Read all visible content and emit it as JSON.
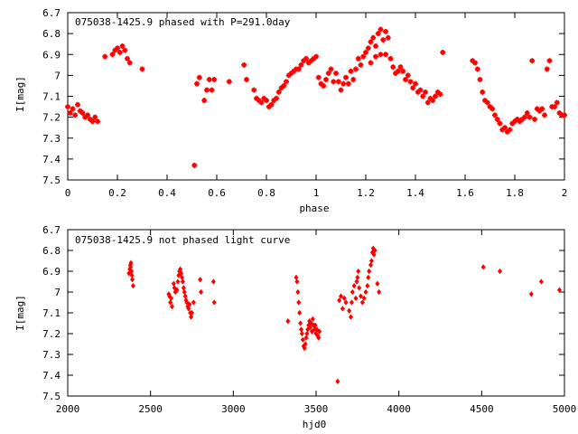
{
  "chart_data": [
    {
      "type": "scatter",
      "title": "075038-1425.9 phased with P=291.0day",
      "xlabel": "phase",
      "ylabel": "I[mag]",
      "xlim": [
        0,
        2
      ],
      "ylim": [
        7.5,
        6.7
      ],
      "y_reversed": true,
      "grid": false,
      "marker": "cross",
      "color": "#ff0000",
      "x_ticks": [
        "0",
        "0.2",
        "0.4",
        "0.6",
        "0.8",
        "1",
        "1.2",
        "1.4",
        "1.6",
        "1.8",
        "2"
      ],
      "y_ticks": [
        "6.7",
        "6.8",
        "6.9",
        "7",
        "7.1",
        "7.2",
        "7.3",
        "7.4",
        "7.5"
      ],
      "x_tick_values": [
        0,
        0.2,
        0.4,
        0.6,
        0.8,
        1.0,
        1.2,
        1.4,
        1.6,
        1.8,
        2.0
      ],
      "y_tick_values": [
        6.7,
        6.8,
        6.9,
        7.0,
        7.1,
        7.2,
        7.3,
        7.4,
        7.5
      ],
      "points": [
        [
          0.0,
          7.15
        ],
        [
          0.01,
          7.18
        ],
        [
          0.02,
          7.16
        ],
        [
          0.03,
          7.19
        ],
        [
          0.04,
          7.14
        ],
        [
          0.05,
          7.17
        ],
        [
          0.06,
          7.18
        ],
        [
          0.07,
          7.2
        ],
        [
          0.08,
          7.19
        ],
        [
          0.09,
          7.21
        ],
        [
          0.1,
          7.22
        ],
        [
          0.11,
          7.2
        ],
        [
          0.12,
          7.22
        ],
        [
          0.15,
          6.91
        ],
        [
          0.18,
          6.9
        ],
        [
          0.19,
          6.88
        ],
        [
          0.2,
          6.87
        ],
        [
          0.21,
          6.89
        ],
        [
          0.22,
          6.86
        ],
        [
          0.23,
          6.88
        ],
        [
          0.24,
          6.92
        ],
        [
          0.25,
          6.94
        ],
        [
          0.3,
          6.97
        ],
        [
          0.51,
          7.43
        ],
        [
          0.52,
          7.04
        ],
        [
          0.53,
          7.01
        ],
        [
          0.55,
          7.12
        ],
        [
          0.56,
          7.07
        ],
        [
          0.57,
          7.02
        ],
        [
          0.58,
          7.07
        ],
        [
          0.59,
          7.02
        ],
        [
          0.65,
          7.03
        ],
        [
          0.71,
          6.95
        ],
        [
          0.72,
          7.02
        ],
        [
          0.75,
          7.07
        ],
        [
          0.76,
          7.11
        ],
        [
          0.77,
          7.12
        ],
        [
          0.78,
          7.13
        ],
        [
          0.79,
          7.11
        ],
        [
          0.8,
          7.12
        ],
        [
          0.81,
          7.15
        ],
        [
          0.82,
          7.14
        ],
        [
          0.83,
          7.12
        ],
        [
          0.84,
          7.11
        ],
        [
          0.85,
          7.08
        ],
        [
          0.86,
          7.06
        ],
        [
          0.87,
          7.05
        ],
        [
          0.88,
          7.03
        ],
        [
          0.89,
          7.0
        ],
        [
          0.9,
          6.99
        ],
        [
          0.91,
          6.98
        ],
        [
          0.92,
          6.97
        ],
        [
          0.93,
          6.97
        ],
        [
          0.94,
          6.95
        ],
        [
          0.95,
          6.93
        ],
        [
          0.96,
          6.92
        ],
        [
          0.97,
          6.94
        ],
        [
          0.98,
          6.93
        ],
        [
          0.99,
          6.92
        ],
        [
          1.0,
          6.91
        ],
        [
          1.01,
          7.01
        ],
        [
          1.02,
          7.04
        ],
        [
          1.03,
          7.05
        ],
        [
          1.04,
          7.02
        ],
        [
          1.05,
          6.99
        ],
        [
          1.06,
          6.97
        ],
        [
          1.07,
          7.03
        ],
        [
          1.08,
          6.99
        ],
        [
          1.09,
          7.03
        ],
        [
          1.1,
          7.07
        ],
        [
          1.11,
          7.04
        ],
        [
          1.12,
          7.01
        ],
        [
          1.13,
          7.04
        ],
        [
          1.14,
          6.98
        ],
        [
          1.15,
          7.02
        ],
        [
          1.16,
          6.97
        ],
        [
          1.17,
          6.92
        ],
        [
          1.18,
          6.95
        ],
        [
          1.19,
          6.91
        ],
        [
          1.2,
          6.89
        ],
        [
          1.21,
          6.87
        ],
        [
          1.22,
          6.84
        ],
        [
          1.23,
          6.82
        ],
        [
          1.24,
          6.86
        ],
        [
          1.25,
          6.8
        ],
        [
          1.26,
          6.78
        ],
        [
          1.27,
          6.83
        ],
        [
          1.28,
          6.79
        ],
        [
          1.29,
          6.82
        ],
        [
          1.22,
          6.94
        ],
        [
          1.24,
          6.91
        ],
        [
          1.26,
          6.9
        ],
        [
          1.28,
          6.9
        ],
        [
          1.3,
          6.92
        ],
        [
          1.31,
          6.96
        ],
        [
          1.32,
          6.99
        ],
        [
          1.33,
          6.98
        ],
        [
          1.34,
          6.96
        ],
        [
          1.35,
          6.98
        ],
        [
          1.36,
          7.02
        ],
        [
          1.37,
          7.0
        ],
        [
          1.38,
          7.03
        ],
        [
          1.39,
          7.06
        ],
        [
          1.4,
          7.04
        ],
        [
          1.41,
          7.08
        ],
        [
          1.42,
          7.07
        ],
        [
          1.43,
          7.1
        ],
        [
          1.44,
          7.08
        ],
        [
          1.45,
          7.13
        ],
        [
          1.46,
          7.11
        ],
        [
          1.47,
          7.12
        ],
        [
          1.48,
          7.1
        ],
        [
          1.49,
          7.08
        ],
        [
          1.5,
          7.09
        ],
        [
          1.51,
          6.89
        ],
        [
          1.63,
          6.93
        ],
        [
          1.64,
          6.94
        ],
        [
          1.65,
          6.97
        ],
        [
          1.66,
          7.02
        ],
        [
          1.67,
          7.08
        ],
        [
          1.68,
          7.12
        ],
        [
          1.69,
          7.13
        ],
        [
          1.7,
          7.15
        ],
        [
          1.71,
          7.16
        ],
        [
          1.72,
          7.19
        ],
        [
          1.73,
          7.21
        ],
        [
          1.74,
          7.23
        ],
        [
          1.75,
          7.26
        ],
        [
          1.76,
          7.25
        ],
        [
          1.77,
          7.27
        ],
        [
          1.78,
          7.26
        ],
        [
          1.79,
          7.23
        ],
        [
          1.8,
          7.22
        ],
        [
          1.81,
          7.21
        ],
        [
          1.82,
          7.22
        ],
        [
          1.83,
          7.21
        ],
        [
          1.84,
          7.2
        ],
        [
          1.85,
          7.18
        ],
        [
          1.86,
          7.2
        ],
        [
          1.87,
          6.93
        ],
        [
          1.88,
          7.21
        ],
        [
          1.89,
          7.16
        ],
        [
          1.9,
          7.17
        ],
        [
          1.91,
          7.16
        ],
        [
          1.92,
          7.19
        ],
        [
          1.93,
          6.97
        ],
        [
          1.94,
          6.93
        ],
        [
          1.95,
          7.15
        ],
        [
          1.96,
          7.15
        ],
        [
          1.97,
          7.13
        ],
        [
          1.98,
          7.18
        ],
        [
          1.99,
          7.19
        ],
        [
          2.0,
          7.19
        ]
      ]
    },
    {
      "type": "scatter",
      "title": "075038-1425.9 not phased light curve",
      "xlabel": "hjd0",
      "ylabel": "I[mag]",
      "xlim": [
        2000,
        5000
      ],
      "ylim": [
        7.5,
        6.7
      ],
      "y_reversed": true,
      "grid": false,
      "marker": "diamond",
      "color": "#ff0000",
      "x_ticks": [
        "2000",
        "2500",
        "3000",
        "3500",
        "4000",
        "4500",
        "5000"
      ],
      "y_ticks": [
        "6.7",
        "6.8",
        "6.9",
        "7",
        "7.1",
        "7.2",
        "7.3",
        "7.4",
        "7.5"
      ],
      "x_tick_values": [
        2000,
        2500,
        3000,
        3500,
        4000,
        4500,
        5000
      ],
      "y_tick_values": [
        6.7,
        6.8,
        6.9,
        7.0,
        7.1,
        7.2,
        7.3,
        7.4,
        7.5
      ],
      "points": [
        [
          2370,
          6.91
        ],
        [
          2375,
          6.89
        ],
        [
          2378,
          6.87
        ],
        [
          2380,
          6.88
        ],
        [
          2382,
          6.86
        ],
        [
          2385,
          6.9
        ],
        [
          2388,
          6.92
        ],
        [
          2390,
          6.94
        ],
        [
          2395,
          6.97
        ],
        [
          2610,
          7.01
        ],
        [
          2615,
          7.02
        ],
        [
          2620,
          7.05
        ],
        [
          2625,
          7.03
        ],
        [
          2630,
          7.07
        ],
        [
          2640,
          6.96
        ],
        [
          2645,
          6.98
        ],
        [
          2650,
          7.0
        ],
        [
          2660,
          6.99
        ],
        [
          2665,
          6.95
        ],
        [
          2670,
          6.92
        ],
        [
          2675,
          6.9
        ],
        [
          2680,
          6.89
        ],
        [
          2685,
          6.91
        ],
        [
          2690,
          6.93
        ],
        [
          2695,
          6.95
        ],
        [
          2700,
          6.98
        ],
        [
          2705,
          7.0
        ],
        [
          2710,
          7.02
        ],
        [
          2715,
          7.04
        ],
        [
          2720,
          7.05
        ],
        [
          2725,
          7.07
        ],
        [
          2730,
          7.08
        ],
        [
          2735,
          7.06
        ],
        [
          2740,
          7.1
        ],
        [
          2745,
          7.12
        ],
        [
          2750,
          7.1
        ],
        [
          2760,
          7.05
        ],
        [
          2800,
          6.94
        ],
        [
          2805,
          7.0
        ],
        [
          2880,
          6.95
        ],
        [
          2885,
          7.05
        ],
        [
          3330,
          7.14
        ],
        [
          3380,
          6.93
        ],
        [
          3385,
          6.95
        ],
        [
          3390,
          7.0
        ],
        [
          3395,
          7.05
        ],
        [
          3400,
          7.1
        ],
        [
          3405,
          7.15
        ],
        [
          3410,
          7.18
        ],
        [
          3415,
          7.2
        ],
        [
          3420,
          7.23
        ],
        [
          3425,
          7.26
        ],
        [
          3430,
          7.27
        ],
        [
          3435,
          7.25
        ],
        [
          3440,
          7.22
        ],
        [
          3445,
          7.2
        ],
        [
          3450,
          7.18
        ],
        [
          3455,
          7.16
        ],
        [
          3460,
          7.14
        ],
        [
          3465,
          7.17
        ],
        [
          3470,
          7.15
        ],
        [
          3475,
          7.19
        ],
        [
          3480,
          7.13
        ],
        [
          3485,
          7.16
        ],
        [
          3490,
          7.18
        ],
        [
          3495,
          7.16
        ],
        [
          3500,
          7.2
        ],
        [
          3505,
          7.18
        ],
        [
          3510,
          7.21
        ],
        [
          3515,
          7.22
        ],
        [
          3520,
          7.19
        ],
        [
          3630,
          7.43
        ],
        [
          3640,
          7.04
        ],
        [
          3650,
          7.02
        ],
        [
          3660,
          7.08
        ],
        [
          3670,
          7.03
        ],
        [
          3680,
          7.05
        ],
        [
          3700,
          7.09
        ],
        [
          3710,
          7.12
        ],
        [
          3715,
          7.05
        ],
        [
          3720,
          7.0
        ],
        [
          3730,
          6.97
        ],
        [
          3740,
          7.03
        ],
        [
          3745,
          6.95
        ],
        [
          3750,
          6.93
        ],
        [
          3755,
          6.9
        ],
        [
          3760,
          6.98
        ],
        [
          3770,
          7.02
        ],
        [
          3780,
          7.05
        ],
        [
          3790,
          7.03
        ],
        [
          3800,
          7.0
        ],
        [
          3810,
          6.97
        ],
        [
          3815,
          6.93
        ],
        [
          3820,
          6.9
        ],
        [
          3830,
          6.87
        ],
        [
          3835,
          6.85
        ],
        [
          3840,
          6.81
        ],
        [
          3845,
          6.79
        ],
        [
          3850,
          6.82
        ],
        [
          3855,
          6.8
        ],
        [
          3870,
          6.96
        ],
        [
          3880,
          7.0
        ],
        [
          4510,
          6.88
        ],
        [
          4610,
          6.9
        ],
        [
          4800,
          7.01
        ],
        [
          4860,
          6.95
        ],
        [
          4970,
          6.99
        ]
      ]
    }
  ]
}
